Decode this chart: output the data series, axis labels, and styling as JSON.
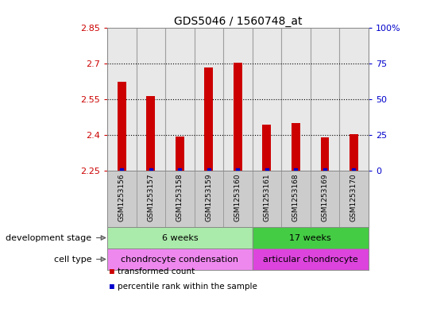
{
  "title": "GDS5046 / 1560748_at",
  "samples": [
    "GSM1253156",
    "GSM1253157",
    "GSM1253158",
    "GSM1253159",
    "GSM1253160",
    "GSM1253161",
    "GSM1253168",
    "GSM1253169",
    "GSM1253170"
  ],
  "transformed_counts": [
    2.625,
    2.565,
    2.395,
    2.685,
    2.705,
    2.445,
    2.45,
    2.39,
    2.405
  ],
  "ylim_left": [
    2.25,
    2.85
  ],
  "ylim_right": [
    0,
    100
  ],
  "yticks_left": [
    2.25,
    2.4,
    2.55,
    2.7,
    2.85
  ],
  "yticks_right": [
    0,
    25,
    50,
    75,
    100
  ],
  "ytick_labels_right": [
    "0",
    "25",
    "50",
    "75",
    "100%"
  ],
  "bar_color": "#cc0000",
  "percentile_color": "#0000cc",
  "grid_color": "#000000",
  "dev_stage_groups": [
    {
      "label": "6 weeks",
      "start": 0,
      "end": 5,
      "color": "#aaeaaa"
    },
    {
      "label": "17 weeks",
      "start": 5,
      "end": 9,
      "color": "#44cc44"
    }
  ],
  "cell_type_groups": [
    {
      "label": "chondrocyte condensation",
      "start": 0,
      "end": 5,
      "color": "#ee88ee"
    },
    {
      "label": "articular chondrocyte",
      "start": 5,
      "end": 9,
      "color": "#dd44dd"
    }
  ],
  "row_label_dev": "development stage",
  "row_label_cell": "cell type",
  "legend_items": [
    {
      "color": "#cc0000",
      "label": "transformed count"
    },
    {
      "color": "#0000cc",
      "label": "percentile rank within the sample"
    }
  ],
  "sample_bg_color": "#cccccc",
  "plot_bg_color": "#ffffff",
  "left_ylabel_color": "#cc0000",
  "right_ylabel_color": "#0000cc",
  "divider_color": "#888888",
  "group_split": 5
}
